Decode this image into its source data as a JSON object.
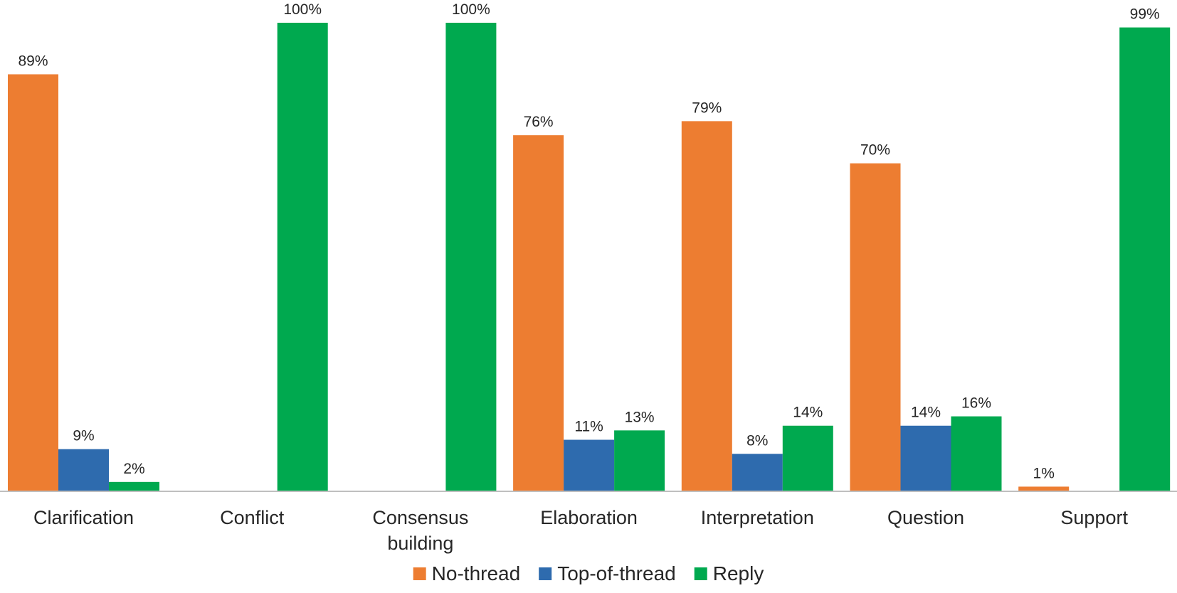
{
  "chart_data": {
    "type": "bar",
    "categories": [
      "Clarification",
      "Conflict",
      "Consensus building",
      "Elaboration",
      "Interpretation",
      "Question",
      "Support"
    ],
    "category_lines": [
      [
        "Clarification"
      ],
      [
        "Conflict"
      ],
      [
        "Consensus",
        "building"
      ],
      [
        "Elaboration"
      ],
      [
        "Interpretation"
      ],
      [
        "Question"
      ],
      [
        "Support"
      ]
    ],
    "series": [
      {
        "name": "No-thread",
        "color": "#ED7D31",
        "values": [
          89,
          null,
          null,
          76,
          79,
          70,
          1
        ],
        "labels": [
          "89%",
          "",
          "",
          "76%",
          "79%",
          "70%",
          "1%"
        ]
      },
      {
        "name": "Top-of-thread",
        "color": "#2E6BAE",
        "values": [
          9,
          null,
          null,
          11,
          8,
          14,
          null
        ],
        "labels": [
          "9%",
          "",
          "",
          "11%",
          "8%",
          "14%",
          ""
        ]
      },
      {
        "name": "Reply",
        "color": "#00A94F",
        "values": [
          2,
          100,
          100,
          13,
          14,
          16,
          99
        ],
        "labels": [
          "2%",
          "100%",
          "100%",
          "13%",
          "14%",
          "16%",
          "99%"
        ]
      }
    ],
    "title": "",
    "xlabel": "",
    "ylabel": "",
    "ylim": [
      0,
      100
    ],
    "grid": false,
    "legend": "bottom-center",
    "axis_color": "#BFBFBF"
  }
}
